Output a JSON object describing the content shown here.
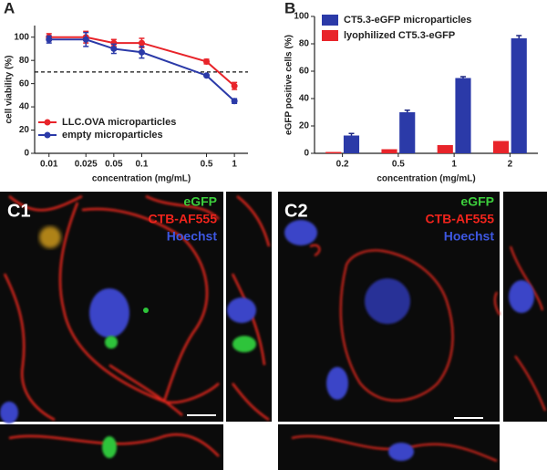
{
  "chart_data": [
    {
      "type": "line",
      "panel_label": "A",
      "x_label": "concentration (mg/mL)",
      "y_label": "cell viability (%)",
      "x": [
        0.01,
        0.025,
        0.05,
        0.1,
        0.5,
        1
      ],
      "x_scale": "log",
      "xlim": [
        0.007,
        1.4
      ],
      "xticks": [
        0.01,
        0.025,
        0.05,
        0.1,
        0.5,
        1
      ],
      "ylim": [
        0,
        110
      ],
      "yticks": [
        0,
        20,
        40,
        60,
        80,
        100
      ],
      "reference_line": 70,
      "legend": "lower left",
      "series": [
        {
          "name": "LLC.OVA microparticles",
          "color": "#e8242a",
          "values": [
            100,
            100,
            95,
            95,
            79,
            58
          ],
          "errors": [
            3,
            5,
            3,
            4,
            2,
            3
          ]
        },
        {
          "name": "empty microparticles",
          "color": "#2b3aa8",
          "values": [
            98,
            98,
            90,
            87,
            67,
            45
          ],
          "errors": [
            3,
            6,
            4,
            5,
            1,
            2
          ]
        }
      ]
    },
    {
      "type": "bar",
      "panel_label": "B",
      "x_label": "concentration (mg/mL)",
      "y_label": "eGFP positive cells  (%)",
      "categories": [
        "0.2",
        "0.5",
        "1",
        "2"
      ],
      "ylim": [
        0,
        100
      ],
      "yticks": [
        0,
        20,
        40,
        60,
        80,
        100
      ],
      "legend": "upper left",
      "series": [
        {
          "name": "CT5.3-eGFP microparticles",
          "color": "#2b3aa8",
          "values": [
            13,
            30,
            55,
            84
          ],
          "errors": [
            1.5,
            1.5,
            1,
            2
          ]
        },
        {
          "name": "lyophilized CT5.3-eGFP",
          "color": "#e8242a",
          "values": [
            1,
            3,
            6,
            9
          ],
          "errors": [
            0,
            0,
            0,
            0
          ]
        }
      ]
    }
  ],
  "images": [
    {
      "label": "C1",
      "channels": [
        "eGFP",
        "CTB-AF555",
        "Hoechst"
      ]
    },
    {
      "label": "C2",
      "channels": [
        "eGFP",
        "CTB-AF555",
        "Hoechst"
      ]
    }
  ]
}
